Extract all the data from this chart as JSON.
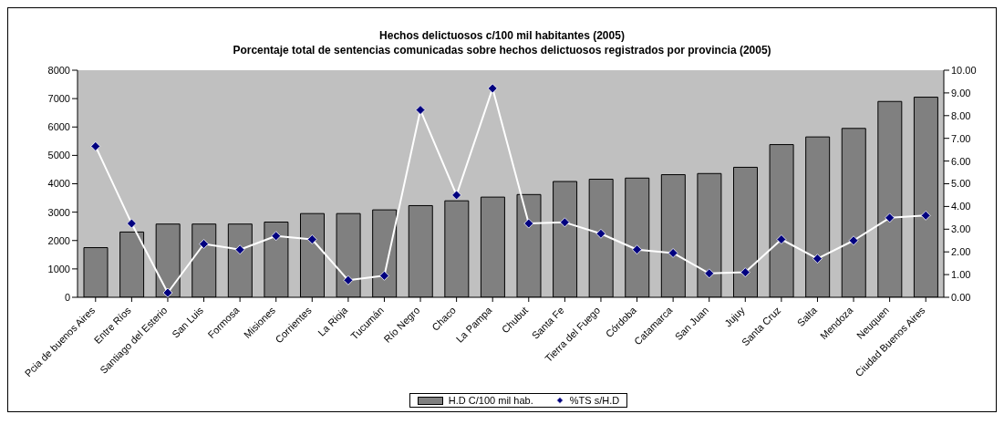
{
  "chart_data": {
    "type": "bar",
    "title": "Hechos delictuosos c/100 mil habitantes (2005)",
    "subtitle": "Porcentaje total de sentencias comunicadas sobre hechos delictuosos registrados por provincia (2005)",
    "categories": [
      "Pcia de buenos Aires",
      "Entre Ríos",
      "Santiago del Esterio",
      "San Luis",
      "Formosa",
      "Misiones",
      "Corrientes",
      "La Rioja",
      "Tucumán",
      "Río Negro",
      "Chaco",
      "La Pampa",
      "Chubut",
      "Santa Fe",
      "Tierra del Fuego",
      "Córdoba",
      "Catamarca",
      "San Juan",
      "Jujuy",
      "Santa Cruz",
      "Salta",
      "Mendoza",
      "Neuquen",
      "Ciudad Buenos Aires"
    ],
    "series": [
      {
        "name": "H.D C/100 mil hab.",
        "color": "#808080",
        "values": [
          1750,
          2300,
          2580,
          2580,
          2580,
          2650,
          2950,
          2950,
          3080,
          3230,
          3400,
          3530,
          3620,
          4080,
          4160,
          4200,
          4320,
          4360,
          4580,
          5380,
          5650,
          5950,
          6900,
          7050
        ]
      },
      {
        "name": "%TS s/H.D",
        "type": "line",
        "axis": "y2",
        "color": "#000080",
        "marker": "diamond",
        "values": [
          6.65,
          3.25,
          0.2,
          2.35,
          2.1,
          2.7,
          2.55,
          0.75,
          0.95,
          8.25,
          4.5,
          9.2,
          3.25,
          3.3,
          2.8,
          2.1,
          1.95,
          1.05,
          1.1,
          2.55,
          1.7,
          2.5,
          3.5,
          3.6
        ]
      }
    ],
    "ylim": [
      0,
      8000
    ],
    "yticks": [
      0,
      1000,
      2000,
      3000,
      4000,
      5000,
      6000,
      7000,
      8000
    ],
    "y2lim": [
      0,
      10
    ],
    "y2ticks": [
      {
        "value": 0,
        "label": "0.00"
      },
      {
        "value": 1,
        "label": "1.00"
      },
      {
        "value": 2,
        "label": "2.00"
      },
      {
        "value": 3,
        "label": "3.00"
      },
      {
        "value": 4,
        "label": "4.00"
      },
      {
        "value": 5,
        "label": "5.00"
      },
      {
        "value": 6,
        "label": "6.00"
      },
      {
        "value": 7,
        "label": "7.00"
      },
      {
        "value": 8,
        "label": "8.00"
      },
      {
        "value": 9,
        "label": "9.00"
      },
      {
        "value": 10,
        "label": "10.00"
      }
    ],
    "legend": "bottom"
  }
}
